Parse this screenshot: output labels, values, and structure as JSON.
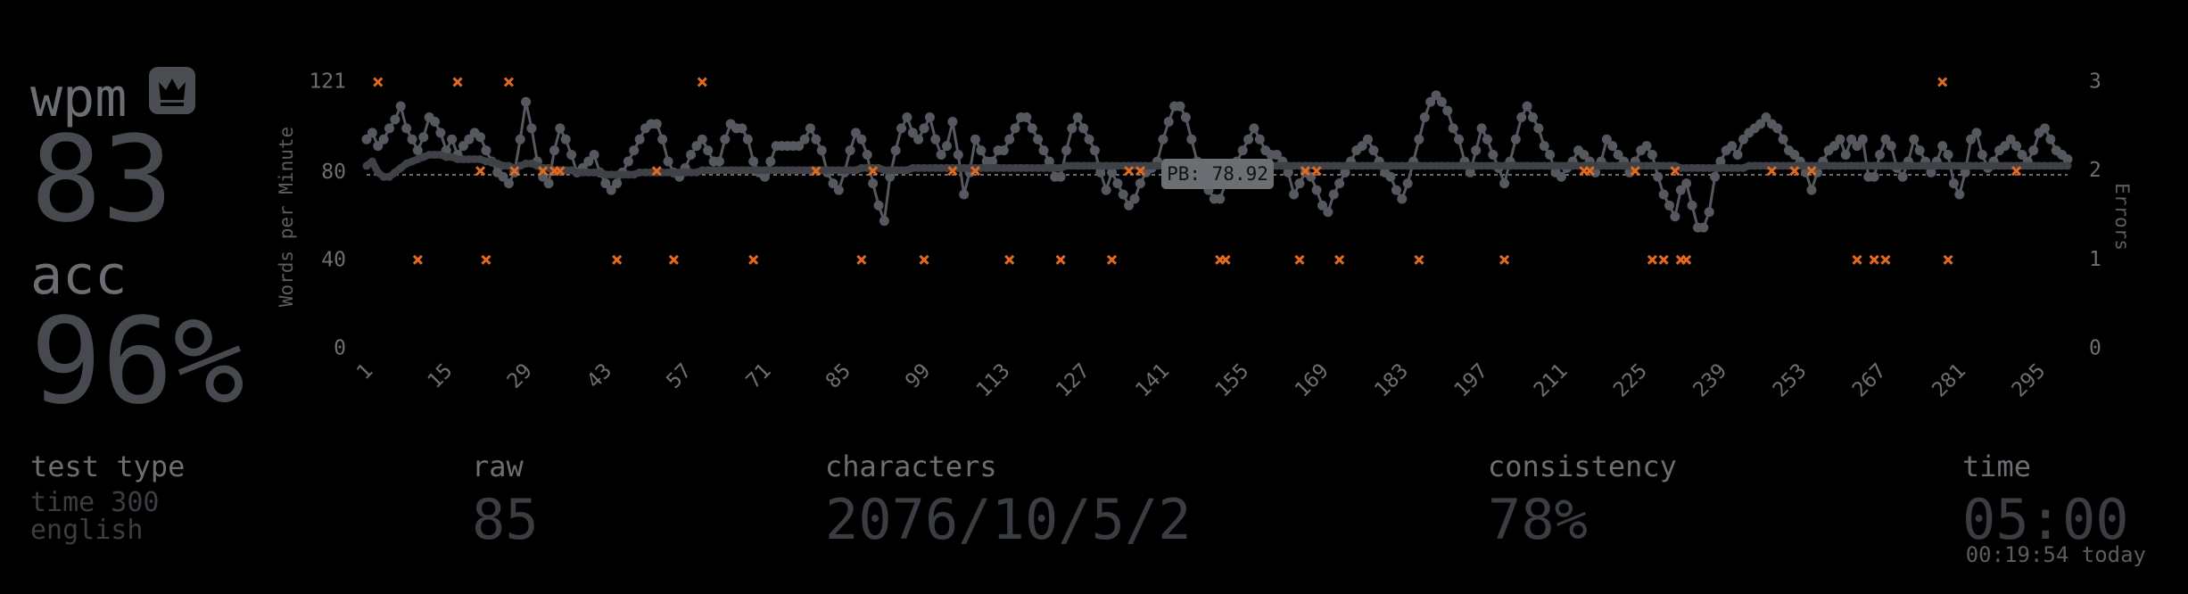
{
  "stats": {
    "wpm": {
      "label": "wpm",
      "value": "83"
    },
    "acc": {
      "label": "acc",
      "value": "96%"
    },
    "test_type": {
      "label": "test type",
      "lines": [
        "time 300",
        "english"
      ]
    },
    "raw": {
      "label": "raw",
      "value": "85"
    },
    "characters": {
      "label": "characters",
      "value": "2076/10/5/2"
    },
    "consistency": {
      "label": "consistency",
      "value": "78%"
    },
    "time": {
      "label": "time",
      "value": "05:00",
      "note": "00:19:54 today"
    }
  },
  "chart_data": {
    "type": "line",
    "ylabel": "Words per Minute",
    "y2label": "Errors",
    "x": [
      1,
      2,
      3,
      4,
      5,
      6,
      7,
      8,
      9,
      10,
      11,
      12,
      13,
      14,
      15,
      16,
      17,
      18,
      19,
      20,
      21,
      22,
      23,
      24,
      25,
      26,
      27,
      28,
      29,
      30,
      31,
      32,
      33,
      34,
      35,
      36,
      37,
      38,
      39,
      40,
      41,
      42,
      43,
      44,
      45,
      46,
      47,
      48,
      49,
      50,
      51,
      52,
      53,
      54,
      55,
      56,
      57,
      58,
      59,
      60,
      61,
      62,
      63,
      64,
      65,
      66,
      67,
      68,
      69,
      70,
      71,
      72,
      73,
      74,
      75,
      76,
      77,
      78,
      79,
      80,
      81,
      82,
      83,
      84,
      85,
      86,
      87,
      88,
      89,
      90,
      91,
      92,
      93,
      94,
      95,
      96,
      97,
      98,
      99,
      100,
      101,
      102,
      103,
      104,
      105,
      106,
      107,
      108,
      109,
      110,
      111,
      112,
      113,
      114,
      115,
      116,
      117,
      118,
      119,
      120,
      121,
      122,
      123,
      124,
      125,
      126,
      127,
      128,
      129,
      130,
      131,
      132,
      133,
      134,
      135,
      136,
      137,
      138,
      139,
      140,
      141,
      142,
      143,
      144,
      145,
      146,
      147,
      148,
      149,
      150,
      151,
      152,
      153,
      154,
      155,
      156,
      157,
      158,
      159,
      160,
      161,
      162,
      163,
      164,
      165,
      166,
      167,
      168,
      169,
      170,
      171,
      172,
      173,
      174,
      175,
      176,
      177,
      178,
      179,
      180,
      181,
      182,
      183,
      184,
      185,
      186,
      187,
      188,
      189,
      190,
      191,
      192,
      193,
      194,
      195,
      196,
      197,
      198,
      199,
      200,
      201,
      202,
      203,
      204,
      205,
      206,
      207,
      208,
      209,
      210,
      211,
      212,
      213,
      214,
      215,
      216,
      217,
      218,
      219,
      220,
      221,
      222,
      223,
      224,
      225,
      226,
      227,
      228,
      229,
      230,
      231,
      232,
      233,
      234,
      235,
      236,
      237,
      238,
      239,
      240,
      241,
      242,
      243,
      244,
      245,
      246,
      247,
      248,
      249,
      250,
      251,
      252,
      253,
      254,
      255,
      256,
      257,
      258,
      259,
      260,
      261,
      262,
      263,
      264,
      265,
      266,
      267,
      268,
      269,
      270,
      271,
      272,
      273,
      274,
      275,
      276,
      277,
      278,
      279,
      280,
      281,
      282,
      283,
      284,
      285,
      286,
      287,
      288,
      289,
      290,
      291,
      292,
      293,
      294,
      295,
      296,
      297,
      298,
      299,
      300
    ],
    "series": [
      {
        "color": "#55595f",
        "values": [
          95,
          98,
          92,
          95,
          100,
          104,
          110,
          100,
          95,
          90,
          96,
          105,
          103,
          98,
          90,
          95,
          88,
          92,
          95,
          98,
          96,
          90,
          85,
          80,
          78,
          75,
          80,
          95,
          112,
          100,
          85,
          78,
          75,
          90,
          100,
          95,
          88,
          80,
          82,
          85,
          88,
          80,
          75,
          72,
          75,
          80,
          85,
          90,
          95,
          100,
          102,
          102,
          95,
          85,
          80,
          78,
          82,
          88,
          92,
          95,
          90,
          85,
          85,
          95,
          102,
          100,
          100,
          95,
          85,
          80,
          78,
          85,
          92,
          92,
          92,
          92,
          92,
          95,
          100,
          95,
          90,
          80,
          75,
          72,
          80,
          90,
          98,
          95,
          88,
          75,
          65,
          58,
          78,
          90,
          100,
          105,
          98,
          95,
          100,
          105,
          95,
          88,
          92,
          103,
          88,
          70,
          80,
          95,
          90,
          85,
          85,
          90,
          90,
          95,
          100,
          105,
          105,
          100,
          95,
          90,
          85,
          78,
          78,
          90,
          100,
          105,
          100,
          95,
          90,
          80,
          72,
          80,
          75,
          70,
          65,
          68,
          75,
          80,
          82,
          85,
          95,
          103,
          110,
          110,
          105,
          95,
          85,
          78,
          72,
          68,
          68,
          75,
          80,
          85,
          90,
          95,
          100,
          95,
          90,
          88,
          88,
          85,
          80,
          70,
          75,
          80,
          78,
          72,
          65,
          62,
          70,
          75,
          80,
          85,
          90,
          92,
          95,
          90,
          85,
          80,
          78,
          72,
          68,
          75,
          85,
          95,
          105,
          112,
          115,
          112,
          108,
          100,
          95,
          85,
          80,
          90,
          100,
          95,
          88,
          82,
          75,
          85,
          95,
          105,
          110,
          105,
          100,
          92,
          88,
          80,
          78,
          82,
          85,
          90,
          88,
          85,
          80,
          85,
          95,
          92,
          88,
          85,
          80,
          85,
          90,
          92,
          88,
          78,
          70,
          65,
          60,
          72,
          75,
          65,
          55,
          55,
          62,
          78,
          85,
          90,
          92,
          88,
          95,
          98,
          100,
          102,
          105,
          102,
          100,
          95,
          90,
          88,
          85,
          80,
          72,
          80,
          85,
          90,
          92,
          95,
          88,
          95,
          92,
          95,
          78,
          78,
          88,
          95,
          92,
          82,
          78,
          85,
          95,
          90,
          85,
          80,
          85,
          92,
          88,
          75,
          70,
          80,
          95,
          98,
          88,
          82,
          85,
          90,
          92,
          95,
          92,
          88,
          85,
          90,
          98,
          100,
          95,
          90,
          88,
          86
        ]
      },
      {
        "color": "#3e4146",
        "values": [
          83,
          85,
          80,
          78,
          78,
          80,
          82,
          84,
          85,
          86,
          87,
          88,
          88,
          88,
          87,
          87,
          86,
          86,
          86,
          86,
          86,
          85,
          85,
          84,
          83,
          83,
          82,
          83,
          84,
          84,
          83,
          82,
          82,
          81,
          81,
          81,
          81,
          80,
          80,
          80,
          80,
          80,
          79,
          79,
          79,
          79,
          79,
          79,
          80,
          80,
          80,
          80,
          80,
          80,
          80,
          80,
          80,
          80,
          80,
          81,
          81,
          81,
          81,
          81,
          81,
          81,
          81,
          81,
          81,
          81,
          81,
          81,
          81,
          81,
          81,
          81,
          81,
          81,
          81,
          81,
          81,
          81,
          81,
          81,
          81,
          81,
          81,
          82,
          82,
          82,
          82,
          81,
          81,
          81,
          81,
          81,
          82,
          82,
          82,
          82,
          82,
          82,
          82,
          82,
          82,
          82,
          82,
          82,
          82,
          82,
          82,
          82,
          82,
          82,
          82,
          82,
          82,
          82,
          82,
          82,
          82,
          82,
          82,
          83,
          83,
          83,
          83,
          83,
          83,
          83,
          83,
          83,
          83,
          83,
          83,
          83,
          83,
          83,
          83,
          83,
          83,
          83,
          83,
          83,
          83,
          83,
          83,
          83,
          83,
          83,
          83,
          83,
          83,
          83,
          83,
          83,
          83,
          83,
          83,
          83,
          83,
          83,
          83,
          83,
          83,
          83,
          83,
          83,
          83,
          83,
          83,
          83,
          83,
          83,
          83,
          83,
          83,
          83,
          83,
          83,
          83,
          83,
          83,
          83,
          83,
          83,
          83,
          83,
          83,
          83,
          83,
          83,
          83,
          83,
          83,
          83,
          83,
          83,
          83,
          83,
          83,
          83,
          83,
          83,
          83,
          83,
          83,
          83,
          83,
          83,
          83,
          83,
          83,
          83,
          83,
          83,
          83,
          83,
          83,
          83,
          83,
          83,
          83,
          83,
          83,
          83,
          83,
          83,
          83,
          83,
          83,
          82,
          82,
          82,
          82,
          82,
          82,
          82,
          82,
          82,
          82,
          82,
          82,
          83,
          83,
          83,
          83,
          83,
          83,
          83,
          83,
          83,
          83,
          83,
          83,
          83,
          83,
          83,
          83,
          83,
          83,
          83,
          83,
          83,
          83,
          83,
          83,
          83,
          83,
          83,
          83,
          83,
          83,
          83,
          83,
          83,
          83,
          83,
          83,
          83,
          83,
          83,
          83,
          83,
          83,
          83,
          83,
          83,
          83,
          83,
          83,
          83,
          83,
          83,
          83,
          83,
          83,
          83,
          83,
          83
        ]
      },
      {
        "type": "scatter",
        "axis": "y2",
        "color": "#e2691f",
        "x": [
          3,
          10,
          17,
          21,
          22,
          26,
          27,
          32,
          34,
          35,
          45,
          52,
          55,
          60,
          69,
          80,
          88,
          90,
          99,
          104,
          108,
          114,
          123,
          132,
          135,
          137,
          151,
          152,
          165,
          166,
          168,
          172,
          186,
          201,
          215,
          216,
          224,
          227,
          229,
          231,
          232,
          233,
          248,
          252,
          255,
          263,
          266,
          268,
          278,
          279,
          291
        ],
        "values": [
          3,
          1,
          3,
          2,
          1,
          3,
          2,
          2,
          2,
          2,
          1,
          2,
          1,
          3,
          1,
          2,
          1,
          2,
          1,
          2,
          2,
          1,
          1,
          1,
          2,
          2,
          1,
          1,
          1,
          2,
          2,
          1,
          1,
          1,
          2,
          2,
          2,
          1,
          1,
          2,
          1,
          1,
          2,
          2,
          2,
          1,
          1,
          1,
          3,
          1,
          2
        ]
      }
    ],
    "xlim": [
      1,
      300
    ],
    "xticks": [
      1,
      15,
      29,
      43,
      57,
      71,
      85,
      99,
      113,
      127,
      141,
      155,
      169,
      183,
      197,
      211,
      225,
      239,
      253,
      267,
      281,
      295
    ],
    "ylim": [
      0,
      121
    ],
    "yticks": [
      0,
      40,
      80,
      121
    ],
    "y2lim": [
      0,
      3
    ],
    "y2ticks": [
      0,
      1,
      2,
      3
    ],
    "annotation": {
      "value": 78.92,
      "label": "PB: 78.92"
    }
  }
}
